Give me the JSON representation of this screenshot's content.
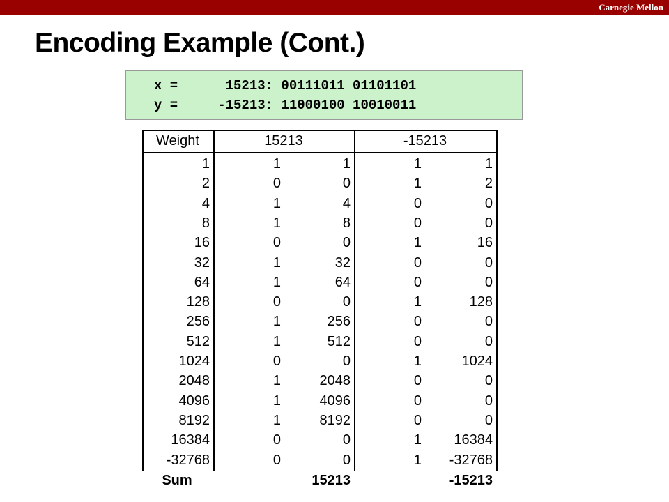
{
  "header": {
    "brand": "Carnegie Mellon",
    "title": "Encoding Example (Cont.)"
  },
  "code": [
    "x =      15213: 00111011 01101101",
    "y =     -15213: 11000100 10010011"
  ],
  "table": {
    "columns": [
      "Weight",
      "15213",
      "-15213"
    ],
    "rows": [
      [
        1,
        1,
        1,
        1,
        1
      ],
      [
        2,
        0,
        0,
        1,
        2
      ],
      [
        4,
        1,
        4,
        0,
        0
      ],
      [
        8,
        1,
        8,
        0,
        0
      ],
      [
        16,
        0,
        0,
        1,
        16
      ],
      [
        32,
        1,
        32,
        0,
        0
      ],
      [
        64,
        1,
        64,
        0,
        0
      ],
      [
        128,
        0,
        0,
        1,
        128
      ],
      [
        256,
        1,
        256,
        0,
        0
      ],
      [
        512,
        1,
        512,
        0,
        0
      ],
      [
        1024,
        0,
        0,
        1,
        1024
      ],
      [
        2048,
        1,
        2048,
        0,
        0
      ],
      [
        4096,
        1,
        4096,
        0,
        0
      ],
      [
        8192,
        1,
        8192,
        0,
        0
      ],
      [
        16384,
        0,
        0,
        1,
        16384
      ],
      [
        -32768,
        0,
        0,
        1,
        -32768
      ]
    ],
    "sum": {
      "label": "Sum",
      "values": [
        15213,
        -15213
      ]
    }
  }
}
